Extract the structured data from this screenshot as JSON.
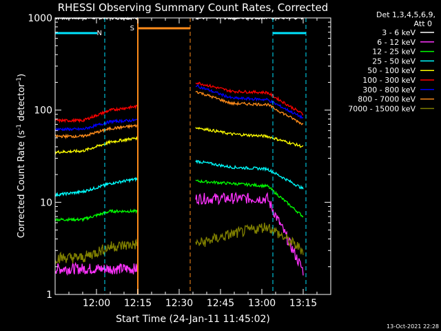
{
  "chart_data": {
    "type": "line",
    "title": "RHESSI Observing Summary Count Rates, Corrected",
    "xlabel": "Start Time (24-Jan-11 11:45:02)",
    "ylabel": "Corrected Count Rate (s⁻¹ detector⁻¹)",
    "ylabel_parts": {
      "main": "Corrected Count Rate (s",
      "exp1": "-1",
      "mid": " detector",
      "exp2": "-1",
      "close": ")"
    },
    "yscale": "log",
    "xlim": [
      "11:45",
      "13:25"
    ],
    "ylim": [
      1,
      1000
    ],
    "xticks": [
      {
        "t": "12:00",
        "label": "12:00"
      },
      {
        "t": "12:15",
        "label": "12:15"
      },
      {
        "t": "12:30",
        "label": "12:30"
      },
      {
        "t": "12:45",
        "label": "12:45"
      },
      {
        "t": "13:00",
        "label": "13:00"
      },
      {
        "t": "13:15",
        "label": "13:15"
      }
    ],
    "yticks": [
      {
        "v": 1,
        "label": "1"
      },
      {
        "v": 10,
        "label": "10"
      },
      {
        "v": 100,
        "label": "100"
      },
      {
        "v": 1000,
        "label": "1000"
      }
    ],
    "legend_header": [
      "Det 1,3,4,5,6,9,",
      "Att 0"
    ],
    "legend_position": "right",
    "timestamp": "13-Oct-2021 22:28",
    "flags": {
      "night": {
        "label": "N",
        "color": "#00e5ff",
        "segments": [
          [
            "11:45",
            "12:03"
          ],
          [
            "13:04",
            "13:16"
          ]
        ]
      },
      "saa": {
        "label": "S",
        "color": "#ff8c1a",
        "segments": [
          [
            "12:15",
            "12:34"
          ]
        ]
      }
    },
    "series": [
      {
        "name": "3 - 6 keV",
        "color": "#ffffff",
        "y1": [
          1000,
          1000,
          1000,
          1000
        ],
        "y2": [
          1000,
          1000,
          1000,
          1000
        ]
      },
      {
        "name": "6 - 12 keV",
        "color": "#ff33ff",
        "y1": [
          1.9,
          1.9,
          1.9,
          1.9
        ],
        "y2": [
          11,
          11,
          11,
          1.8
        ]
      },
      {
        "name": "12 - 25 keV",
        "color": "#00ff00",
        "y1": [
          6.5,
          6.5,
          8,
          8
        ],
        "y2": [
          17,
          16,
          15,
          7
        ]
      },
      {
        "name": "25 - 50 keV",
        "color": "#00ffff",
        "y1": [
          12,
          13,
          16,
          18
        ],
        "y2": [
          28,
          24,
          23,
          14
        ]
      },
      {
        "name": "50 - 100 keV",
        "color": "#ffff00",
        "y1": [
          35,
          36,
          45,
          50
        ],
        "y2": [
          65,
          55,
          52,
          40
        ]
      },
      {
        "name": "100 - 300 keV",
        "color": "#ff0000",
        "y1": [
          77,
          77,
          100,
          110
        ],
        "y2": [
          200,
          160,
          155,
          90
        ]
      },
      {
        "name": "300 - 800 keV",
        "color": "#0000ff",
        "y1": [
          62,
          62,
          75,
          78
        ],
        "y2": [
          185,
          135,
          130,
          82
        ]
      },
      {
        "name": "800 - 7000 keV",
        "color": "#ff8c1a",
        "y1": [
          52,
          52,
          63,
          68
        ],
        "y2": [
          160,
          118,
          115,
          70
        ]
      },
      {
        "name": "7000 - 15000 keV",
        "color": "#808000",
        "y1": [
          2.5,
          2.5,
          3.3,
          3.5
        ],
        "y2": [
          3.5,
          4.5,
          5.5,
          3
        ]
      }
    ]
  }
}
